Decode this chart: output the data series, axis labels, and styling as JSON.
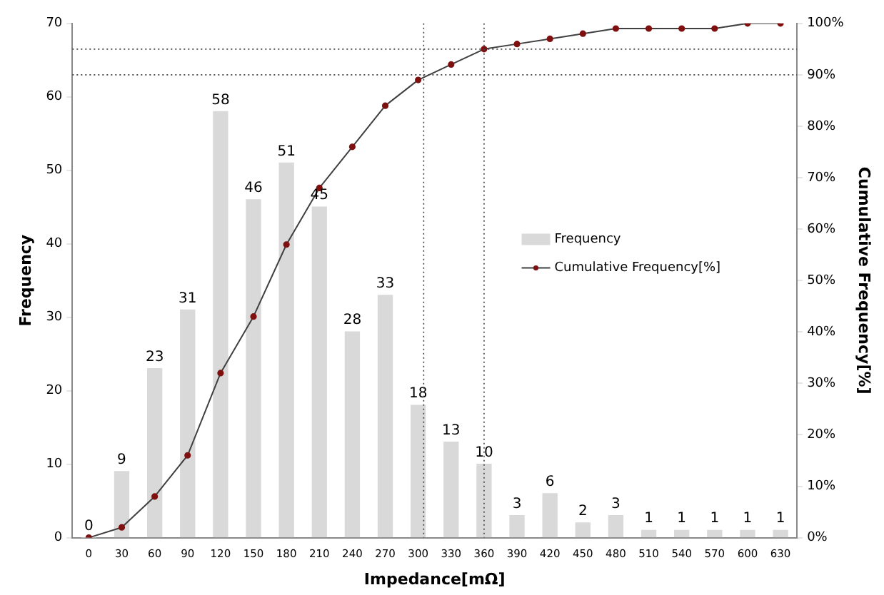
{
  "chart_data": {
    "type": "bar",
    "xlabel": "Impedance[mΩ]",
    "ylabel": "Frequency",
    "y2label": "Cumulative Frequency[%]",
    "x": [
      0,
      30,
      60,
      90,
      120,
      150,
      180,
      210,
      240,
      270,
      300,
      330,
      360,
      390,
      420,
      450,
      480,
      510,
      540,
      570,
      600,
      630
    ],
    "xlim": [
      -15,
      645
    ],
    "xticks": [
      0,
      30,
      60,
      90,
      120,
      150,
      180,
      210,
      240,
      270,
      300,
      330,
      360,
      390,
      420,
      450,
      480,
      510,
      540,
      570,
      600,
      630
    ],
    "ylim": [
      0,
      70
    ],
    "yticks": [
      0,
      10,
      20,
      30,
      40,
      50,
      60,
      70
    ],
    "y2lim": [
      0,
      100
    ],
    "y2ticks": [
      {
        "value": 0,
        "label": "0%"
      },
      {
        "value": 10,
        "label": "10%"
      },
      {
        "value": 20,
        "label": "20%"
      },
      {
        "value": 30,
        "label": "30%"
      },
      {
        "value": 40,
        "label": "40%"
      },
      {
        "value": 50,
        "label": "50%"
      },
      {
        "value": 60,
        "label": "60%"
      },
      {
        "value": 70,
        "label": "70%"
      },
      {
        "value": 80,
        "label": "80%"
      },
      {
        "value": 90,
        "label": "90%"
      },
      {
        "value": 100,
        "label": "100%"
      }
    ],
    "series": [
      {
        "name": "Frequency",
        "color": "#d9d9d9",
        "values": [
          0,
          9,
          23,
          31,
          58,
          46,
          51,
          45,
          28,
          33,
          18,
          13,
          10,
          3,
          6,
          2,
          3,
          1,
          1,
          1,
          1,
          1
        ],
        "data_labels": true
      },
      {
        "name": "Cumulative Frequency[%]",
        "type": "line",
        "axis": "y2",
        "color": "#404040",
        "marker": "circle",
        "values": [
          0,
          2,
          8,
          16,
          32,
          43,
          57,
          68,
          76,
          84,
          89,
          92,
          95,
          96,
          97,
          98,
          99,
          99,
          99,
          99,
          100,
          100
        ]
      }
    ],
    "ref_lines": [
      {
        "axis": "y2",
        "value": 95,
        "color": "#404040",
        "line_style": "dotted"
      },
      {
        "axis": "y2",
        "value": 90,
        "color": "#404040",
        "line_style": "dotted"
      },
      {
        "axis": "x",
        "value": 305,
        "color": "#404040",
        "line_style": "dotted"
      },
      {
        "axis": "x",
        "value": 360,
        "color": "#404040",
        "line_style": "dotted"
      }
    ],
    "legend": "right",
    "grid": false
  }
}
